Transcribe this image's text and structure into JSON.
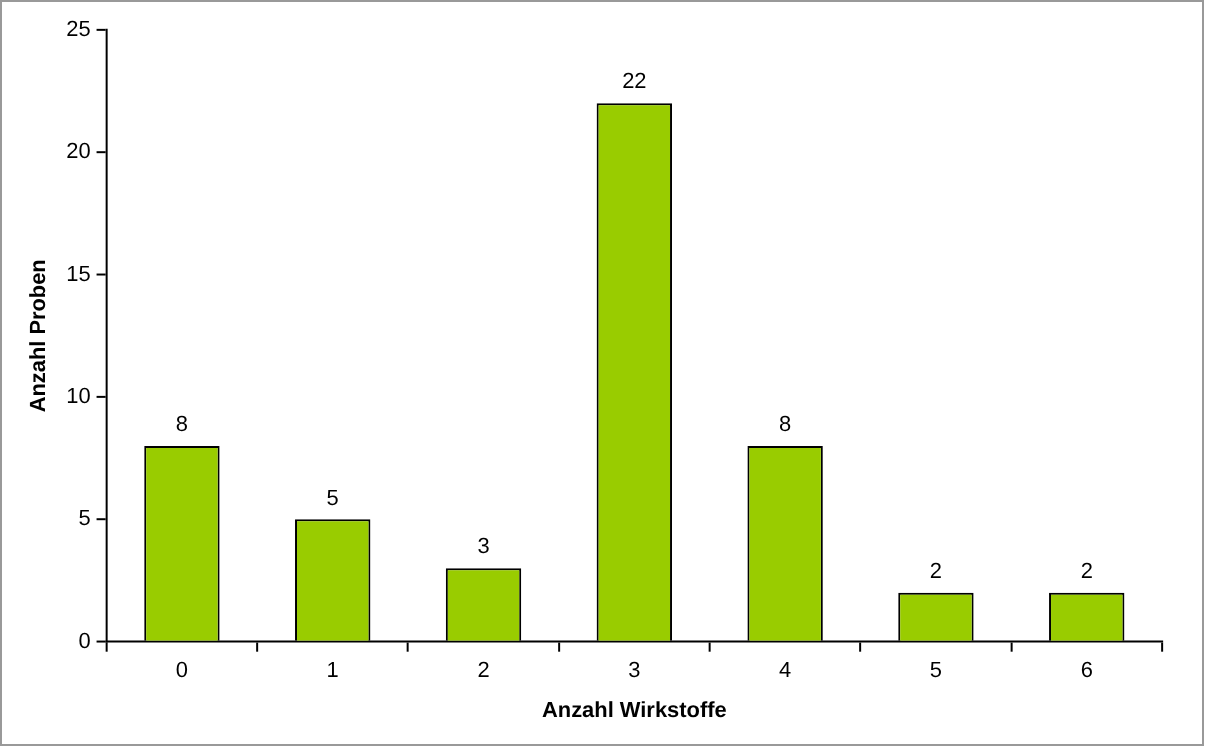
{
  "chart_data": {
    "type": "bar",
    "xlabel": "Anzahl Wirkstoffe",
    "ylabel": "Anzahl Proben",
    "categories": [
      "0",
      "1",
      "2",
      "3",
      "4",
      "5",
      "6"
    ],
    "values": [
      8,
      5,
      3,
      22,
      8,
      2,
      2
    ],
    "color": "#99cc00",
    "ylim": [
      0,
      25
    ],
    "yticks": [
      0,
      5,
      10,
      15,
      20,
      25
    ],
    "grid": false,
    "legend": false,
    "data_labels": true
  }
}
